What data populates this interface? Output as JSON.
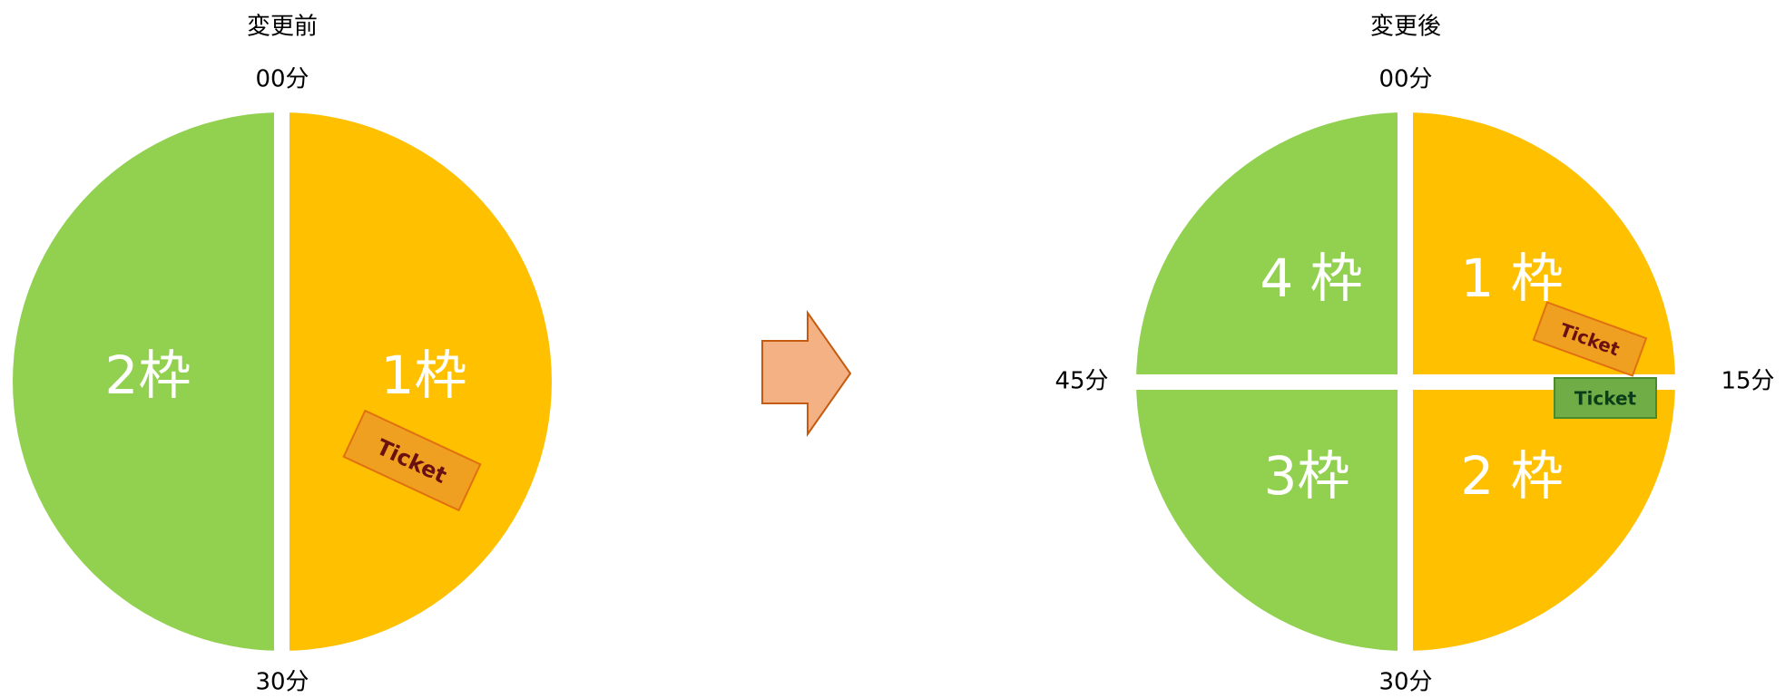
{
  "before": {
    "title": "変更前",
    "top_label": "00分",
    "bottom_label": "30分",
    "segments": [
      "2枠",
      "1枠"
    ],
    "ticket": "Ticket"
  },
  "after": {
    "title": "変更後",
    "top_label": "00分",
    "right_label": "15分",
    "bottom_label": "30分",
    "left_label": "45分",
    "segments": [
      "1 枠",
      "2 枠",
      "3枠",
      "4 枠"
    ],
    "tickets": [
      "Ticket",
      "Ticket"
    ]
  }
}
